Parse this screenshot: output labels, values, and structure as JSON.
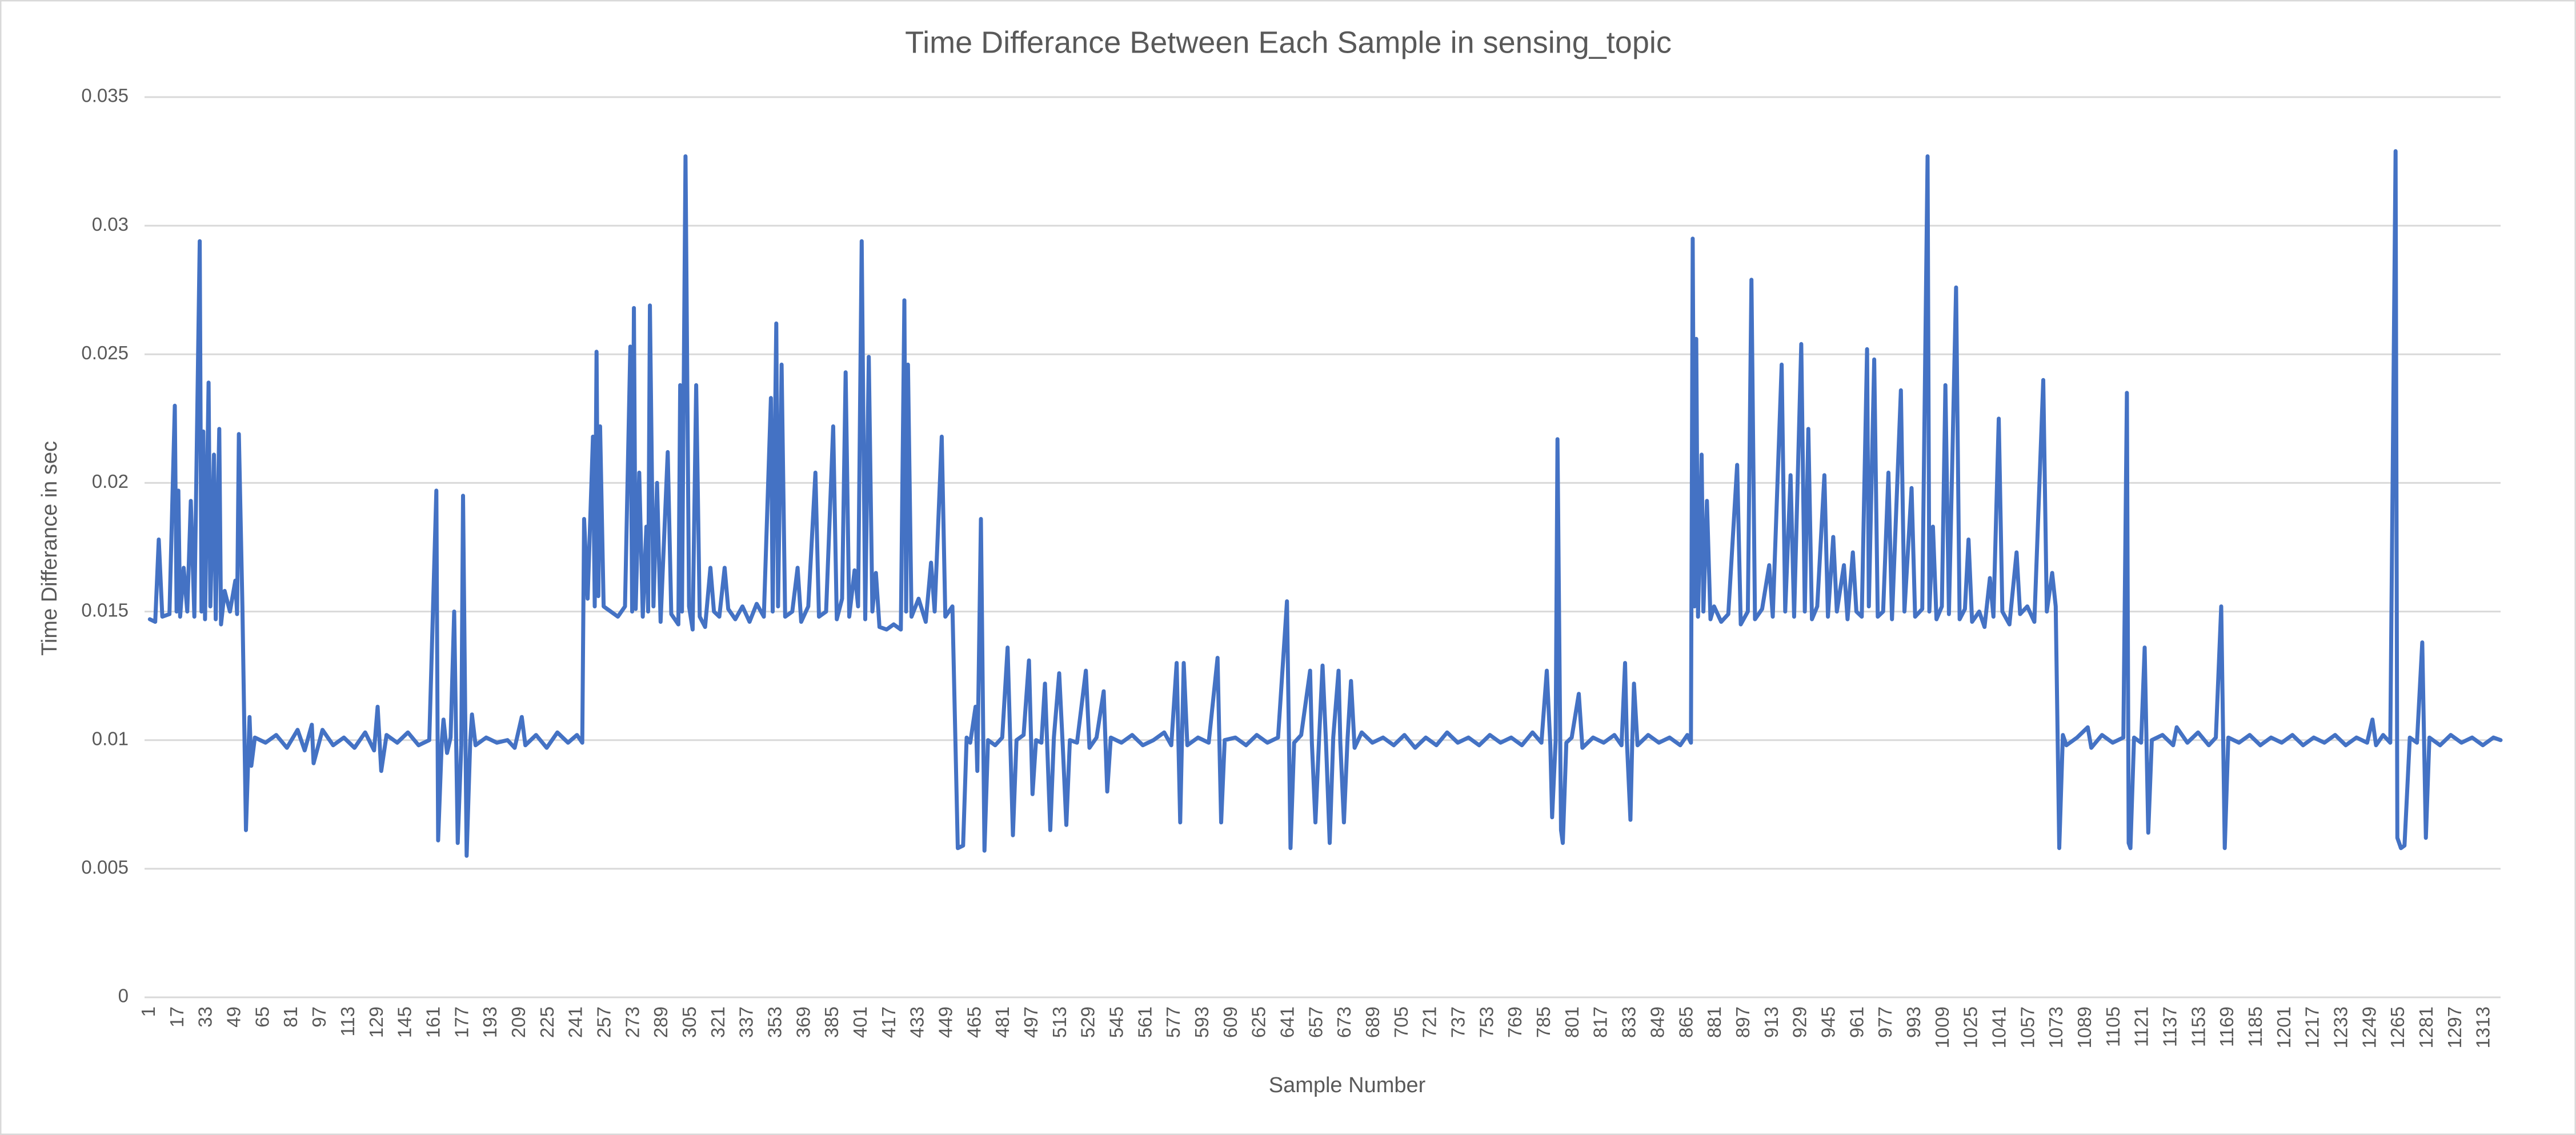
{
  "chart_data": {
    "type": "line",
    "title": "Time Differance Between Each Sample in sensing_topic",
    "x_label": "Sample Number",
    "y_label": "Time Differance in sec",
    "color": "#4472c4",
    "grid": true,
    "xlim": [
      -2,
      1322
    ],
    "xticks": [
      1,
      17,
      33,
      49,
      65,
      81,
      97,
      113,
      129,
      145,
      161,
      177,
      193,
      209,
      225,
      241,
      257,
      273,
      289,
      305,
      321,
      337,
      353,
      369,
      385,
      401,
      417,
      433,
      449,
      465,
      481,
      497,
      513,
      529,
      545,
      561,
      577,
      593,
      609,
      625,
      641,
      657,
      673,
      689,
      705,
      721,
      737,
      753,
      769,
      785,
      801,
      817,
      833,
      849,
      865,
      881,
      897,
      913,
      929,
      945,
      961,
      977,
      993,
      1009,
      1025,
      1041,
      1057,
      1073,
      1089,
      1105,
      1121,
      1137,
      1153,
      1169,
      1185,
      1201,
      1217,
      1233,
      1249,
      1265,
      1281,
      1297,
      1313
    ],
    "ylim": [
      0,
      0.035
    ],
    "yticks": [
      0,
      0.005,
      0.01,
      0.015,
      0.02,
      0.025,
      0.03,
      0.035
    ],
    "x": [
      1,
      4,
      6,
      8,
      12,
      15,
      16,
      17,
      18,
      20,
      22,
      24,
      26,
      29,
      30,
      31,
      32,
      34,
      35,
      37,
      38,
      40,
      41,
      43,
      46,
      49,
      50,
      51,
      53,
      55,
      57,
      58,
      60,
      66,
      72,
      78,
      84,
      88,
      92,
      93,
      98,
      104,
      110,
      116,
      122,
      127,
      129,
      131,
      134,
      140,
      146,
      152,
      158,
      162,
      163,
      165,
      166,
      168,
      170,
      172,
      174,
      176,
      177,
      179,
      181,
      182,
      184,
      190,
      196,
      202,
      206,
      210,
      212,
      218,
      224,
      230,
      236,
      241,
      244,
      245,
      247,
      250,
      251,
      252,
      253,
      254,
      256,
      260,
      264,
      268,
      271,
      272,
      273,
      274,
      276,
      278,
      280,
      281,
      282,
      284,
      286,
      288,
      292,
      294,
      298,
      299,
      300,
      302,
      304,
      306,
      308,
      310,
      313,
      316,
      318,
      321,
      324,
      326,
      330,
      334,
      338,
      342,
      346,
      350,
      351,
      353,
      354,
      356,
      358,
      362,
      365,
      367,
      371,
      375,
      377,
      381,
      385,
      387,
      390,
      392,
      394,
      397,
      399,
      401,
      403,
      405,
      407,
      409,
      411,
      415,
      419,
      423,
      425,
      426,
      427,
      429,
      433,
      437,
      440,
      442,
      446,
      448,
      452,
      455,
      458,
      460,
      462,
      465,
      466,
      468,
      470,
      472,
      476,
      480,
      483,
      486,
      488,
      492,
      495,
      497,
      499,
      502,
      504,
      507,
      509,
      512,
      514,
      516,
      518,
      522,
      527,
      529,
      533,
      537,
      539,
      541,
      547,
      553,
      559,
      565,
      571,
      575,
      578,
      579,
      580,
      581,
      582,
      584,
      590,
      596,
      601,
      603,
      605,
      611,
      617,
      623,
      629,
      635,
      640,
      642,
      644,
      648,
      653,
      654,
      656,
      658,
      660,
      662,
      664,
      666,
      669,
      670,
      672,
      674,
      676,
      678,
      682,
      688,
      694,
      700,
      706,
      712,
      718,
      724,
      730,
      736,
      742,
      748,
      754,
      760,
      766,
      772,
      778,
      783,
      786,
      788,
      789,
      791,
      792,
      794,
      795,
      797,
      800,
      804,
      806,
      812,
      818,
      824,
      828,
      830,
      831,
      833,
      834,
      835,
      837,
      843,
      849,
      855,
      861,
      865,
      867,
      868,
      869,
      870,
      871,
      873,
      874,
      876,
      878,
      880,
      884,
      888,
      893,
      895,
      899,
      901,
      903,
      907,
      911,
      913,
      918,
      920,
      923,
      925,
      929,
      931,
      933,
      935,
      938,
      942,
      944,
      947,
      949,
      953,
      955,
      958,
      960,
      963,
      966,
      967,
      970,
      972,
      975,
      978,
      980,
      985,
      987,
      991,
      993,
      997,
      1000,
      1001,
      1003,
      1005,
      1008,
      1010,
      1012,
      1016,
      1018,
      1021,
      1023,
      1025,
      1029,
      1032,
      1035,
      1037,
      1040,
      1042,
      1046,
      1050,
      1052,
      1056,
      1060,
      1065,
      1067,
      1070,
      1072,
      1074,
      1076,
      1078,
      1084,
      1090,
      1092,
      1098,
      1104,
      1110,
      1112,
      1113,
      1114,
      1116,
      1120,
      1122,
      1124,
      1126,
      1132,
      1138,
      1140,
      1146,
      1152,
      1158,
      1162,
      1165,
      1167,
      1169,
      1175,
      1181,
      1187,
      1193,
      1199,
      1205,
      1211,
      1217,
      1223,
      1229,
      1235,
      1241,
      1247,
      1250,
      1252,
      1256,
      1260,
      1263,
      1264,
      1266,
      1268,
      1271,
      1275,
      1278,
      1280,
      1282,
      1288,
      1294,
      1300,
      1306,
      1312,
      1318,
      1322
    ],
    "values": [
      0.0147,
      0.0146,
      0.0178,
      0.0148,
      0.0149,
      0.023,
      0.015,
      0.0197,
      0.0148,
      0.0167,
      0.015,
      0.0193,
      0.0148,
      0.0294,
      0.015,
      0.022,
      0.0147,
      0.0239,
      0.0152,
      0.0211,
      0.0147,
      0.0221,
      0.0145,
      0.0158,
      0.015,
      0.0162,
      0.0149,
      0.0219,
      0.0152,
      0.0065,
      0.0109,
      0.009,
      0.0101,
      0.0099,
      0.0102,
      0.0097,
      0.0104,
      0.0096,
      0.0106,
      0.0091,
      0.0104,
      0.0098,
      0.0101,
      0.0097,
      0.0103,
      0.0096,
      0.0113,
      0.0088,
      0.0102,
      0.0099,
      0.0103,
      0.0098,
      0.01,
      0.0197,
      0.0061,
      0.0099,
      0.0108,
      0.0095,
      0.0101,
      0.015,
      0.006,
      0.0098,
      0.0195,
      0.0055,
      0.0099,
      0.011,
      0.0098,
      0.0101,
      0.0099,
      0.01,
      0.0097,
      0.0109,
      0.0098,
      0.0102,
      0.0097,
      0.0103,
      0.0099,
      0.0102,
      0.0099,
      0.0186,
      0.0155,
      0.0218,
      0.0152,
      0.0251,
      0.0156,
      0.0222,
      0.0152,
      0.015,
      0.0148,
      0.0152,
      0.0253,
      0.015,
      0.0268,
      0.0151,
      0.0204,
      0.0148,
      0.0183,
      0.015,
      0.0269,
      0.0152,
      0.02,
      0.0146,
      0.0212,
      0.0149,
      0.0145,
      0.0238,
      0.015,
      0.0327,
      0.0152,
      0.0143,
      0.0238,
      0.0148,
      0.0144,
      0.0167,
      0.015,
      0.0148,
      0.0167,
      0.0151,
      0.0147,
      0.0152,
      0.0146,
      0.0153,
      0.0148,
      0.0233,
      0.015,
      0.0262,
      0.0152,
      0.0246,
      0.0148,
      0.015,
      0.0167,
      0.0146,
      0.0152,
      0.0204,
      0.0148,
      0.015,
      0.0222,
      0.0147,
      0.0155,
      0.0243,
      0.0148,
      0.0166,
      0.0152,
      0.0294,
      0.0147,
      0.0249,
      0.015,
      0.0165,
      0.0144,
      0.0143,
      0.0145,
      0.0143,
      0.0271,
      0.015,
      0.0246,
      0.0148,
      0.0155,
      0.0146,
      0.0169,
      0.015,
      0.0218,
      0.0148,
      0.0152,
      0.0058,
      0.0059,
      0.0101,
      0.0099,
      0.0113,
      0.0088,
      0.0186,
      0.0057,
      0.01,
      0.0098,
      0.0101,
      0.0136,
      0.0063,
      0.01,
      0.0102,
      0.0131,
      0.0079,
      0.01,
      0.0099,
      0.0122,
      0.0065,
      0.0101,
      0.0126,
      0.0098,
      0.0067,
      0.01,
      0.0099,
      0.0127,
      0.0097,
      0.0101,
      0.0119,
      0.008,
      0.0101,
      0.0099,
      0.0102,
      0.0098,
      0.01,
      0.0103,
      0.0098,
      0.013,
      0.0099,
      0.0068,
      0.01,
      0.013,
      0.0098,
      0.0101,
      0.0099,
      0.0132,
      0.0068,
      0.01,
      0.0101,
      0.0098,
      0.0102,
      0.0099,
      0.0101,
      0.0154,
      0.0058,
      0.0099,
      0.0102,
      0.0127,
      0.0099,
      0.0068,
      0.01,
      0.0129,
      0.0098,
      0.006,
      0.0101,
      0.0127,
      0.0099,
      0.0068,
      0.01,
      0.0123,
      0.0097,
      0.0103,
      0.0099,
      0.0101,
      0.0098,
      0.0102,
      0.0097,
      0.0101,
      0.0098,
      0.0103,
      0.0099,
      0.0101,
      0.0098,
      0.0102,
      0.0099,
      0.0101,
      0.0098,
      0.0103,
      0.0099,
      0.0127,
      0.0098,
      0.007,
      0.01,
      0.0217,
      0.0065,
      0.006,
      0.0099,
      0.0101,
      0.0118,
      0.0097,
      0.0101,
      0.0099,
      0.0102,
      0.0098,
      0.013,
      0.01,
      0.0069,
      0.0099,
      0.0122,
      0.0098,
      0.0102,
      0.0099,
      0.0101,
      0.0098,
      0.0102,
      0.0099,
      0.0295,
      0.0152,
      0.0256,
      0.0148,
      0.0211,
      0.015,
      0.0193,
      0.0147,
      0.0152,
      0.0146,
      0.0149,
      0.0207,
      0.0145,
      0.015,
      0.0279,
      0.0147,
      0.0151,
      0.0168,
      0.0148,
      0.0246,
      0.015,
      0.0203,
      0.0148,
      0.0254,
      0.015,
      0.0221,
      0.0147,
      0.0152,
      0.0203,
      0.0148,
      0.0179,
      0.015,
      0.0168,
      0.0147,
      0.0173,
      0.015,
      0.0148,
      0.0252,
      0.0152,
      0.0248,
      0.0148,
      0.015,
      0.0204,
      0.0147,
      0.0236,
      0.015,
      0.0198,
      0.0148,
      0.0151,
      0.0327,
      0.015,
      0.0183,
      0.0147,
      0.0152,
      0.0238,
      0.0149,
      0.0276,
      0.0147,
      0.0151,
      0.0178,
      0.0146,
      0.015,
      0.0144,
      0.0163,
      0.0148,
      0.0225,
      0.015,
      0.0145,
      0.0173,
      0.0149,
      0.0152,
      0.0146,
      0.024,
      0.015,
      0.0165,
      0.0152,
      0.0058,
      0.0102,
      0.0098,
      0.0101,
      0.0105,
      0.0097,
      0.0102,
      0.0099,
      0.0101,
      0.0235,
      0.006,
      0.0058,
      0.0101,
      0.0099,
      0.0136,
      0.0064,
      0.01,
      0.0102,
      0.0098,
      0.0105,
      0.0099,
      0.0103,
      0.0098,
      0.0101,
      0.0152,
      0.0058,
      0.0101,
      0.0099,
      0.0102,
      0.0098,
      0.0101,
      0.0099,
      0.0102,
      0.0098,
      0.0101,
      0.0099,
      0.0102,
      0.0098,
      0.0101,
      0.0099,
      0.0108,
      0.0098,
      0.0102,
      0.0099,
      0.0329,
      0.0062,
      0.0058,
      0.0059,
      0.0101,
      0.0099,
      0.0138,
      0.0062,
      0.0101,
      0.0098,
      0.0102,
      0.0099,
      0.0101,
      0.0098,
      0.0101,
      0.01
    ]
  }
}
